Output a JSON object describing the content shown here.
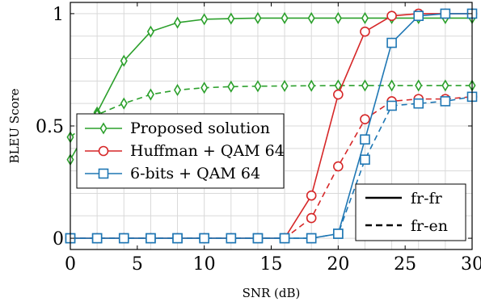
{
  "chart_data": {
    "type": "line",
    "title": "",
    "xlabel": "SNR (dB)",
    "ylabel": "BLEU Score",
    "xlim": [
      0,
      30
    ],
    "ylim": [
      -0.05,
      1.05
    ],
    "grid": true,
    "xticks": [
      0,
      5,
      10,
      15,
      20,
      25,
      30
    ],
    "yticks": [
      0,
      0.5,
      1
    ],
    "xtick_labels": [
      "0",
      "5",
      "10",
      "15",
      "20",
      "25",
      "30"
    ],
    "ytick_labels": [
      "0",
      "0.5",
      "1"
    ],
    "legend_methods": {
      "placement": "middle-left",
      "entries": [
        {
          "name": "Proposed solution",
          "color": "#2ca02c",
          "marker": "diamond"
        },
        {
          "name": "Huffman + QAM 64",
          "color": "#d62728",
          "marker": "circle"
        },
        {
          "name": "6-bits + QAM 64",
          "color": "#1f77b4",
          "marker": "square"
        }
      ]
    },
    "legend_styles": {
      "placement": "bottom-right",
      "entries": [
        {
          "name": "fr-fr",
          "line_style": "solid"
        },
        {
          "name": "fr-en",
          "line_style": "dashed"
        }
      ]
    },
    "series": [
      {
        "method": "Proposed solution",
        "lang": "fr-fr",
        "line_style": "solid",
        "color": "#2ca02c",
        "marker": "diamond",
        "x": [
          0,
          2,
          4,
          6,
          8,
          10,
          12,
          14,
          16,
          18,
          20,
          22,
          24,
          26,
          28,
          30
        ],
        "values": [
          0.35,
          0.56,
          0.79,
          0.92,
          0.96,
          0.975,
          0.978,
          0.98,
          0.98,
          0.98,
          0.98,
          0.98,
          0.98,
          0.98,
          0.98,
          0.98
        ]
      },
      {
        "method": "Proposed solution",
        "lang": "fr-en",
        "line_style": "dashed",
        "color": "#2ca02c",
        "marker": "diamond",
        "x": [
          0,
          2,
          4,
          6,
          8,
          10,
          12,
          14,
          16,
          18,
          20,
          22,
          24,
          26,
          28,
          30
        ],
        "values": [
          0.45,
          0.55,
          0.6,
          0.64,
          0.66,
          0.67,
          0.675,
          0.677,
          0.678,
          0.679,
          0.68,
          0.68,
          0.68,
          0.68,
          0.68,
          0.68
        ]
      },
      {
        "method": "Huffman + QAM 64",
        "lang": "fr-fr",
        "line_style": "solid",
        "color": "#d62728",
        "marker": "circle",
        "x": [
          0,
          2,
          4,
          6,
          8,
          10,
          12,
          14,
          16,
          18,
          20,
          22,
          24,
          26,
          28,
          30
        ],
        "values": [
          0,
          0,
          0,
          0,
          0,
          0,
          0,
          0,
          0,
          0.19,
          0.64,
          0.92,
          0.99,
          1.0,
          1.0,
          1.0
        ]
      },
      {
        "method": "Huffman + QAM 64",
        "lang": "fr-en",
        "line_style": "dashed",
        "color": "#d62728",
        "marker": "circle",
        "x": [
          0,
          2,
          4,
          6,
          8,
          10,
          12,
          14,
          16,
          18,
          20,
          22,
          24,
          26,
          28,
          30
        ],
        "values": [
          0,
          0,
          0,
          0,
          0,
          0,
          0,
          0,
          0,
          0.09,
          0.32,
          0.53,
          0.61,
          0.62,
          0.62,
          0.63
        ]
      },
      {
        "method": "6-bits + QAM 64",
        "lang": "fr-fr",
        "line_style": "solid",
        "color": "#1f77b4",
        "marker": "square",
        "x": [
          0,
          2,
          4,
          6,
          8,
          10,
          12,
          14,
          16,
          18,
          20,
          22,
          24,
          26,
          28,
          30
        ],
        "values": [
          0,
          0,
          0,
          0,
          0,
          0,
          0,
          0,
          0,
          0,
          0.02,
          0.44,
          0.87,
          0.99,
          1.0,
          1.0
        ]
      },
      {
        "method": "6-bits + QAM 64",
        "lang": "fr-en",
        "line_style": "dashed",
        "color": "#1f77b4",
        "marker": "square",
        "x": [
          0,
          2,
          4,
          6,
          8,
          10,
          12,
          14,
          16,
          18,
          20,
          22,
          24,
          26,
          28,
          30
        ],
        "values": [
          0,
          0,
          0,
          0,
          0,
          0,
          0,
          0,
          0,
          0,
          0.02,
          0.35,
          0.59,
          0.6,
          0.61,
          0.63
        ]
      }
    ]
  }
}
